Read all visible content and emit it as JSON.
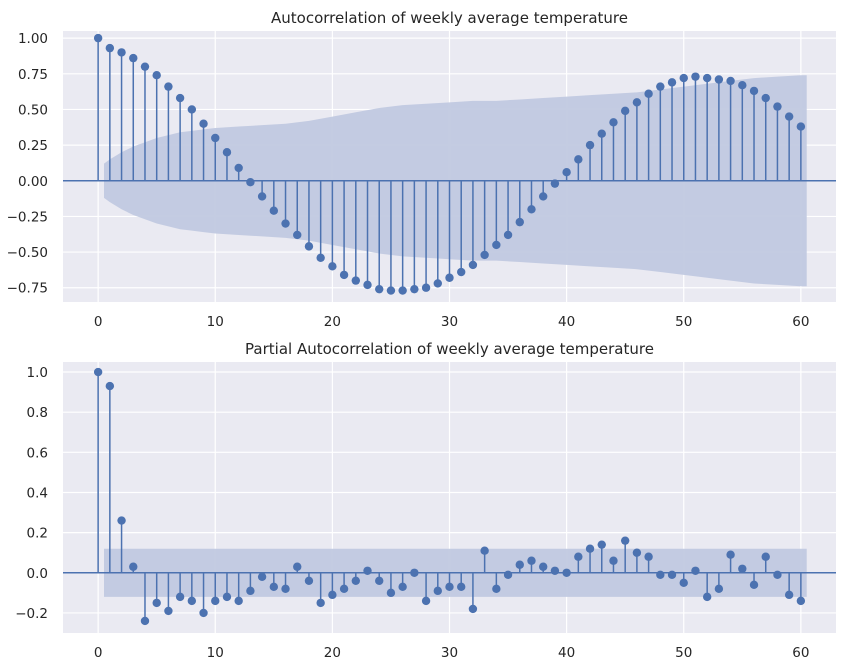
{
  "chart_data": [
    {
      "type": "stem",
      "title": "Autocorrelation of weekly average temperature",
      "xlabel": "",
      "ylabel": "",
      "xlim": [
        -3,
        63
      ],
      "ylim": [
        -0.85,
        1.05
      ],
      "xticks": [
        0,
        10,
        20,
        30,
        40,
        50,
        60
      ],
      "yticks": [
        -0.75,
        -0.5,
        -0.25,
        0.0,
        0.25,
        0.5,
        0.75,
        1.0
      ],
      "ytick_labels": [
        "−0.75",
        "−0.50",
        "−0.25",
        "0.00",
        "0.25",
        "0.50",
        "0.75",
        "1.00"
      ],
      "grid": true,
      "x": [
        0,
        1,
        2,
        3,
        4,
        5,
        6,
        7,
        8,
        9,
        10,
        11,
        12,
        13,
        14,
        15,
        16,
        17,
        18,
        19,
        20,
        21,
        22,
        23,
        24,
        25,
        26,
        27,
        28,
        29,
        30,
        31,
        32,
        33,
        34,
        35,
        36,
        37,
        38,
        39,
        40,
        41,
        42,
        43,
        44,
        45,
        46,
        47,
        48,
        49,
        50,
        51,
        52,
        53,
        54,
        55,
        56,
        57,
        58,
        59,
        60
      ],
      "values": [
        1.0,
        0.93,
        0.9,
        0.86,
        0.8,
        0.74,
        0.66,
        0.58,
        0.5,
        0.4,
        0.3,
        0.2,
        0.09,
        -0.01,
        -0.11,
        -0.21,
        -0.3,
        -0.38,
        -0.46,
        -0.54,
        -0.6,
        -0.66,
        -0.7,
        -0.73,
        -0.76,
        -0.77,
        -0.77,
        -0.76,
        -0.75,
        -0.72,
        -0.68,
        -0.64,
        -0.59,
        -0.52,
        -0.45,
        -0.38,
        -0.29,
        -0.2,
        -0.11,
        -0.02,
        0.06,
        0.15,
        0.25,
        0.33,
        0.41,
        0.49,
        0.55,
        0.61,
        0.66,
        0.69,
        0.72,
        0.73,
        0.72,
        0.71,
        0.7,
        0.67,
        0.63,
        0.58,
        0.52,
        0.45,
        0.38
      ],
      "confidence_band": {
        "x": [
          0.5,
          1,
          2,
          3,
          4,
          5,
          6,
          7,
          8,
          9,
          10,
          12,
          14,
          16,
          18,
          20,
          22,
          24,
          26,
          28,
          30,
          32,
          34,
          36,
          38,
          40,
          42,
          44,
          46,
          48,
          50,
          52,
          54,
          56,
          58,
          60,
          60.5
        ],
        "upper": [
          0.12,
          0.15,
          0.2,
          0.24,
          0.27,
          0.3,
          0.32,
          0.34,
          0.35,
          0.36,
          0.37,
          0.38,
          0.39,
          0.4,
          0.42,
          0.45,
          0.48,
          0.51,
          0.53,
          0.54,
          0.55,
          0.56,
          0.56,
          0.57,
          0.58,
          0.59,
          0.6,
          0.61,
          0.62,
          0.64,
          0.66,
          0.68,
          0.7,
          0.72,
          0.73,
          0.74,
          0.74
        ]
      }
    },
    {
      "type": "stem",
      "title": "Partial Autocorrelation of weekly average temperature",
      "xlabel": "",
      "ylabel": "",
      "xlim": [
        -3,
        63
      ],
      "ylim": [
        -0.3,
        1.05
      ],
      "xticks": [
        0,
        10,
        20,
        30,
        40,
        50,
        60
      ],
      "yticks": [
        -0.2,
        0.0,
        0.2,
        0.4,
        0.6,
        0.8,
        1.0
      ],
      "ytick_labels": [
        "−0.2",
        "0.0",
        "0.2",
        "0.4",
        "0.6",
        "0.8",
        "1.0"
      ],
      "grid": true,
      "x": [
        0,
        1,
        2,
        3,
        4,
        5,
        6,
        7,
        8,
        9,
        10,
        11,
        12,
        13,
        14,
        15,
        16,
        17,
        18,
        19,
        20,
        21,
        22,
        23,
        24,
        25,
        26,
        27,
        28,
        29,
        30,
        31,
        32,
        33,
        34,
        35,
        36,
        37,
        38,
        39,
        40,
        41,
        42,
        43,
        44,
        45,
        46,
        47,
        48,
        49,
        50,
        51,
        52,
        53,
        54,
        55,
        56,
        57,
        58,
        59,
        60
      ],
      "values": [
        1.0,
        0.93,
        0.26,
        0.03,
        -0.24,
        -0.15,
        -0.19,
        -0.12,
        -0.14,
        -0.2,
        -0.14,
        -0.12,
        -0.14,
        -0.09,
        -0.02,
        -0.07,
        -0.08,
        0.03,
        -0.04,
        -0.15,
        -0.11,
        -0.08,
        -0.04,
        0.01,
        -0.04,
        -0.1,
        -0.07,
        0.0,
        -0.14,
        -0.09,
        -0.07,
        -0.07,
        -0.18,
        0.11,
        -0.08,
        -0.01,
        0.04,
        0.06,
        0.03,
        0.01,
        0.0,
        0.08,
        0.12,
        0.14,
        0.06,
        0.16,
        0.1,
        0.08,
        -0.01,
        -0.01,
        -0.05,
        0.01,
        -0.12,
        -0.08,
        0.09,
        0.02,
        -0.06,
        0.08,
        -0.01,
        -0.11,
        -0.14
      ],
      "confidence_band": {
        "x": [
          0.5,
          60.5
        ],
        "upper": [
          0.12,
          0.12
        ]
      }
    }
  ],
  "colors": {
    "axes_bg": "#eaeaf2",
    "grid": "#ffffff",
    "stem": "#4c72b0",
    "band": "#c1c9e0"
  }
}
